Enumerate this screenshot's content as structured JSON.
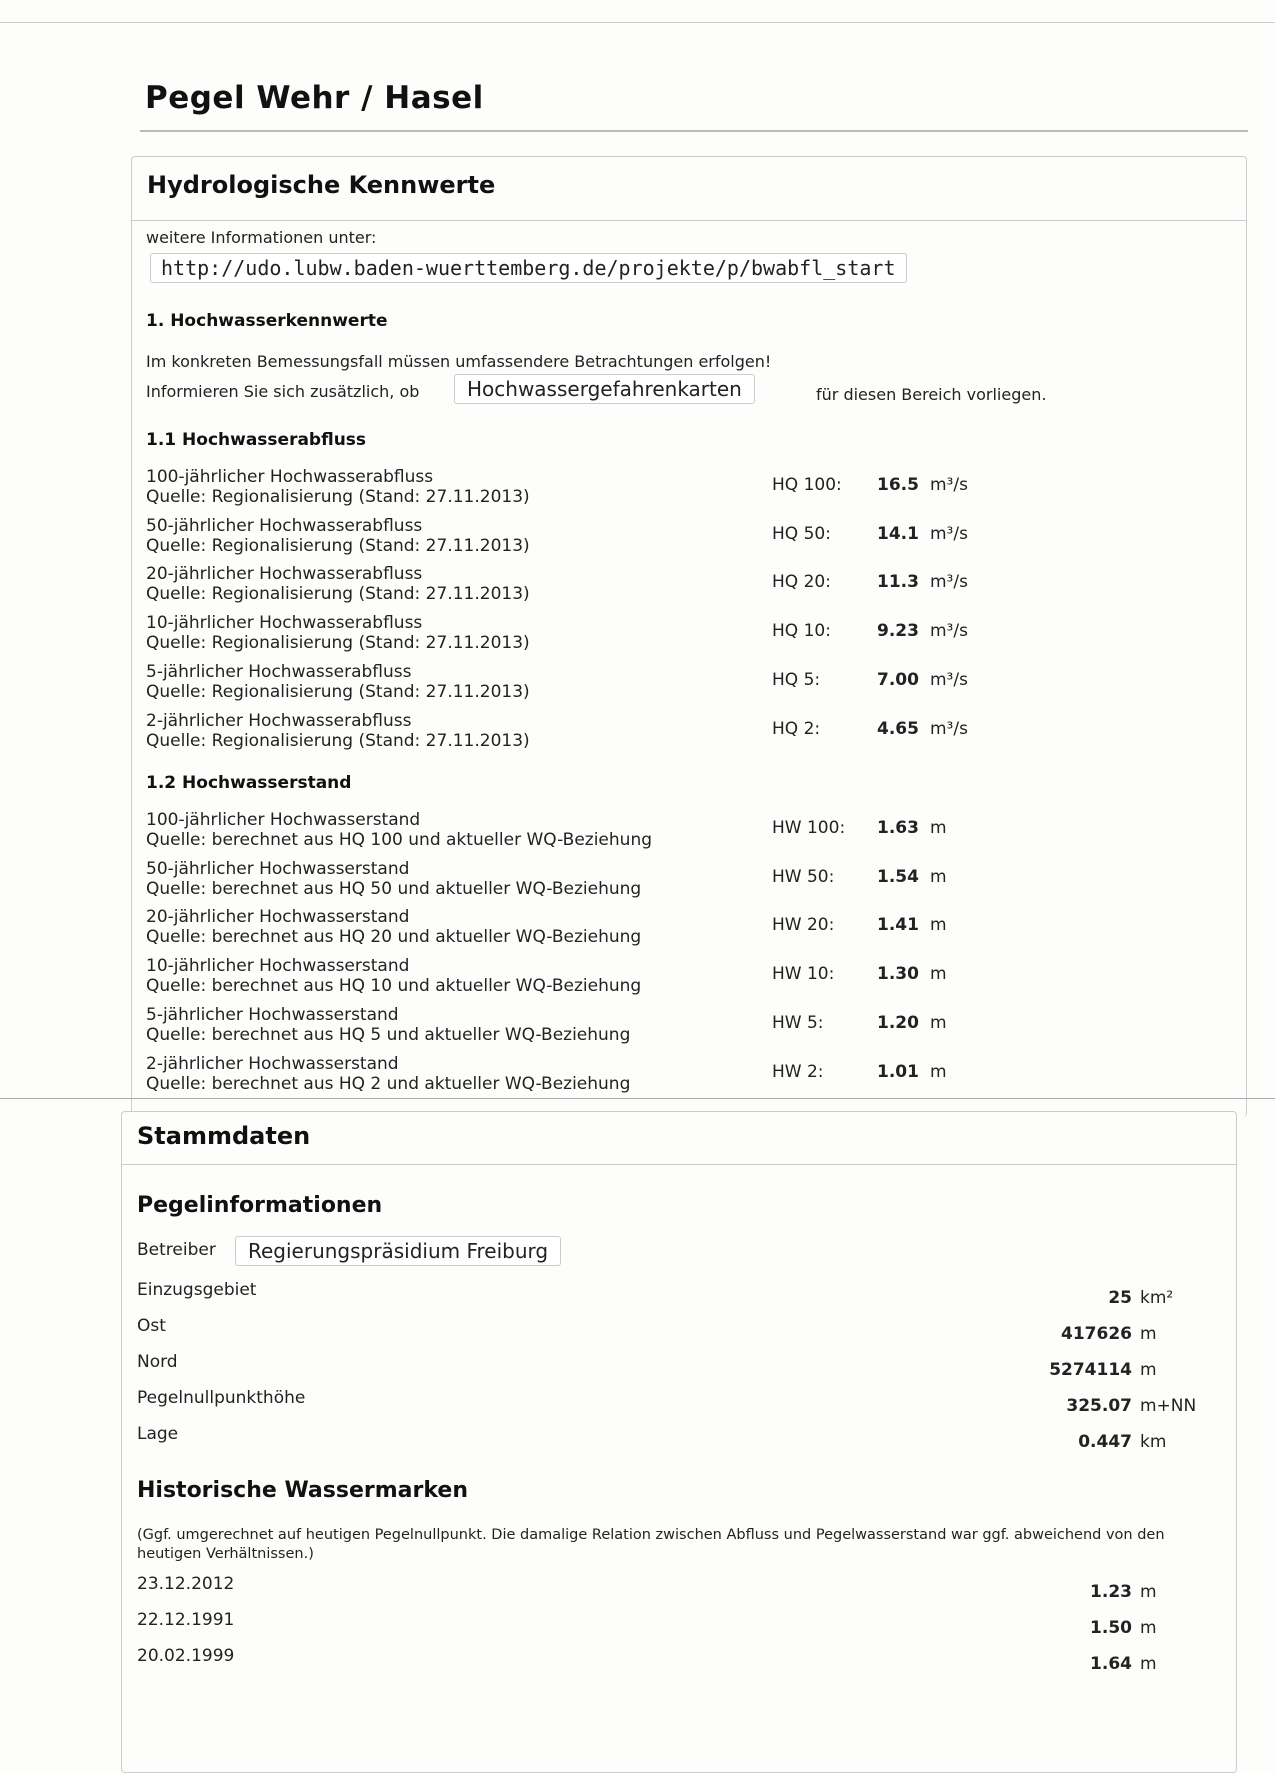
{
  "page_title": "Pegel  Wehr / Hasel",
  "hydro": {
    "heading": "Hydrologische Kennwerte",
    "more_info_label": "weitere Informationen unter:",
    "link": "http://udo.lubw.baden-wuerttemberg.de/projekte/p/bwabfl_start",
    "section1": "1. Hochwasserkennwerte",
    "warning": "Im konkreten Bemessungsfall müssen umfassendere Betrachtungen erfolgen!",
    "inform_prefix": "Informieren Sie sich zusätzlich, ob",
    "maps_button": "Hochwassergefahrenkarten",
    "inform_suffix": "für diesen Bereich vorliegen.",
    "section11": "1.1 Hochwasserabfluss",
    "discharge": [
      {
        "title": "100-jährlicher Hochwasserabfluss",
        "source": "Quelle: Regionalisierung (Stand: 27.11.2013)",
        "label": "HQ 100:",
        "value": "16.5",
        "unit": "m³/s"
      },
      {
        "title": "50-jährlicher Hochwasserabfluss",
        "source": "Quelle: Regionalisierung (Stand: 27.11.2013)",
        "label": "HQ 50:",
        "value": "14.1",
        "unit": "m³/s"
      },
      {
        "title": "20-jährlicher Hochwasserabfluss",
        "source": "Quelle: Regionalisierung (Stand: 27.11.2013)",
        "label": "HQ 20:",
        "value": "11.3",
        "unit": "m³/s"
      },
      {
        "title": "10-jährlicher Hochwasserabfluss",
        "source": "Quelle: Regionalisierung (Stand: 27.11.2013)",
        "label": "HQ 10:",
        "value": "9.23",
        "unit": "m³/s"
      },
      {
        "title": "5-jährlicher Hochwasserabfluss",
        "source": "Quelle: Regionalisierung (Stand: 27.11.2013)",
        "label": "HQ 5:",
        "value": "7.00",
        "unit": "m³/s"
      },
      {
        "title": "2-jährlicher Hochwasserabfluss",
        "source": "Quelle: Regionalisierung (Stand: 27.11.2013)",
        "label": "HQ 2:",
        "value": "4.65",
        "unit": "m³/s"
      }
    ],
    "section12": "1.2 Hochwasserstand",
    "levels": [
      {
        "title": "100-jährlicher Hochwasserstand",
        "source": "Quelle: berechnet aus HQ 100 und aktueller WQ-Beziehung",
        "label": "HW 100:",
        "value": "1.63",
        "unit": "m"
      },
      {
        "title": "50-jährlicher Hochwasserstand",
        "source": "Quelle: berechnet aus HQ 50 und aktueller WQ-Beziehung",
        "label": "HW 50:",
        "value": "1.54",
        "unit": "m"
      },
      {
        "title": "20-jährlicher Hochwasserstand",
        "source": "Quelle: berechnet aus HQ 20 und aktueller WQ-Beziehung",
        "label": "HW 20:",
        "value": "1.41",
        "unit": "m"
      },
      {
        "title": "10-jährlicher Hochwasserstand",
        "source": "Quelle: berechnet aus HQ 10 und aktueller WQ-Beziehung",
        "label": "HW 10:",
        "value": "1.30",
        "unit": "m"
      },
      {
        "title": "5-jährlicher Hochwasserstand",
        "source": "Quelle: berechnet aus HQ 5 und aktueller WQ-Beziehung",
        "label": "HW 5:",
        "value": "1.20",
        "unit": "m"
      },
      {
        "title": "2-jährlicher Hochwasserstand",
        "source": "Quelle: berechnet aus HQ 2 und aktueller WQ-Beziehung",
        "label": "HW 2:",
        "value": "1.01",
        "unit": "m"
      }
    ]
  },
  "stamm": {
    "heading": "Stammdaten",
    "pegel_heading": "Pegelinformationen",
    "operator_label": "Betreiber",
    "operator_value": "Regierungspräsidium Freiburg",
    "info": [
      {
        "label": "Einzugsgebiet",
        "value": "25",
        "unit": "km²"
      },
      {
        "label": "Ost",
        "value": "417626",
        "unit": "m"
      },
      {
        "label": "Nord",
        "value": "5274114",
        "unit": "m"
      },
      {
        "label": "Pegelnullpunkthöhe",
        "value": "325.07",
        "unit": "m+NN"
      },
      {
        "label": "Lage",
        "value": "0.447",
        "unit": "km"
      }
    ],
    "hist_heading": "Historische Wassermarken",
    "hist_note": "(Ggf. umgerechnet auf heutigen Pegelnullpunkt. Die damalige Relation zwischen Abfluss und Pegelwasserstand war ggf. abweichend von den heutigen Verhältnissen.)",
    "marks": [
      {
        "date": "23.12.2012",
        "value": "1.23",
        "unit": "m"
      },
      {
        "date": "22.12.1991",
        "value": "1.50",
        "unit": "m"
      },
      {
        "date": "20.02.1999",
        "value": "1.64",
        "unit": "m"
      }
    ]
  }
}
